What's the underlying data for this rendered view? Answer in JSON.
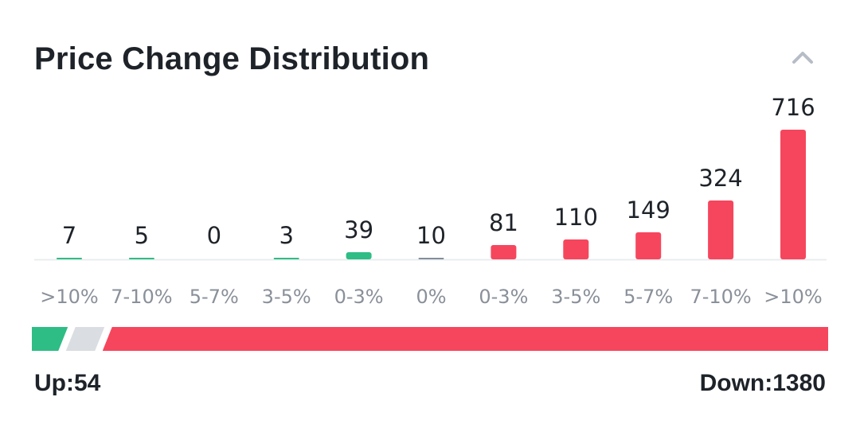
{
  "header": {
    "title": "Price Change Distribution",
    "collapse_icon": "chevron-up-icon"
  },
  "colors": {
    "up": "#2ebd85",
    "flat": "#848e9c",
    "flat_bar": "#dadde1",
    "down": "#f6465d",
    "baseline": "#eaecef"
  },
  "chart_data": {
    "type": "bar",
    "categories": [
      ">10%",
      "7-10%",
      "5-7%",
      "3-5%",
      "0-3%",
      "0%",
      "0-3%",
      "3-5%",
      "5-7%",
      "7-10%",
      ">10%"
    ],
    "values": [
      7,
      5,
      0,
      3,
      39,
      10,
      81,
      110,
      149,
      324,
      716
    ],
    "groups": [
      "up",
      "up",
      "up",
      "up",
      "up",
      "flat",
      "down",
      "down",
      "down",
      "down",
      "down"
    ],
    "ylim": [
      0,
      716
    ],
    "grid": false,
    "legend": "none"
  },
  "summary": {
    "up_label": "Up:54",
    "down_label": "Down:1380",
    "up_count": 54,
    "flat_count": 10,
    "down_count": 1380
  }
}
